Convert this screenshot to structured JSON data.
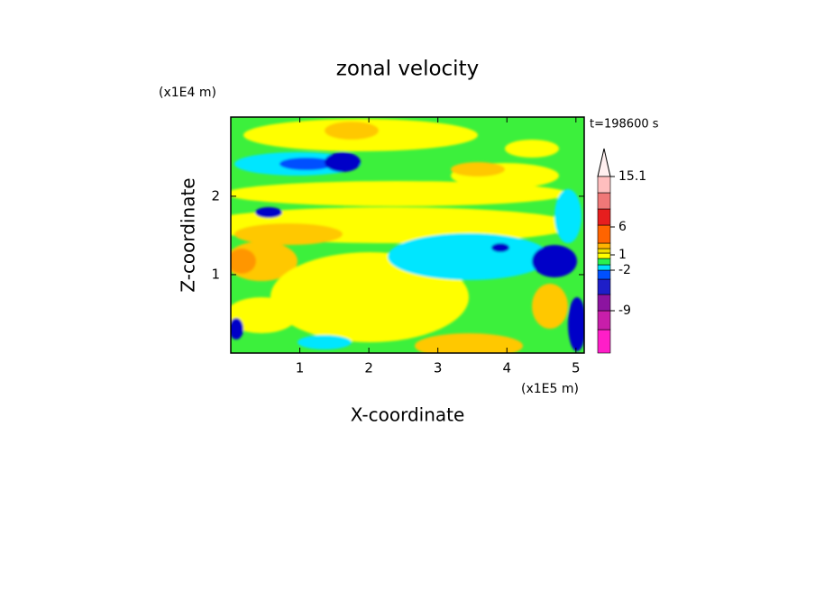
{
  "chart_data": {
    "type": "contour",
    "title": "zonal velocity",
    "x_label": "X-coordinate",
    "y_label": "Z-coordinate",
    "x_unit": "(x1E5 m)",
    "y_unit": "(x1E4 m)",
    "time_label": "t=198600 s",
    "xlim": [
      0,
      5.12
    ],
    "xticks": [
      1,
      2,
      3,
      4,
      5
    ],
    "ylim": [
      0,
      3.01
    ],
    "yticks": [
      1,
      2
    ],
    "colorbar": {
      "colors": [
        "#ff1ec8",
        "#c81eaa",
        "#8c14a0",
        "#1e1ec8",
        "#0050ff",
        "#00dcff",
        "#28f050",
        "#ffff00",
        "#f0dc00",
        "#ffb400",
        "#ff6400",
        "#e61e1e",
        "#f07878",
        "#ffbebe"
      ],
      "ticks": [
        -9,
        -2,
        1,
        6,
        15.1
      ]
    }
  }
}
